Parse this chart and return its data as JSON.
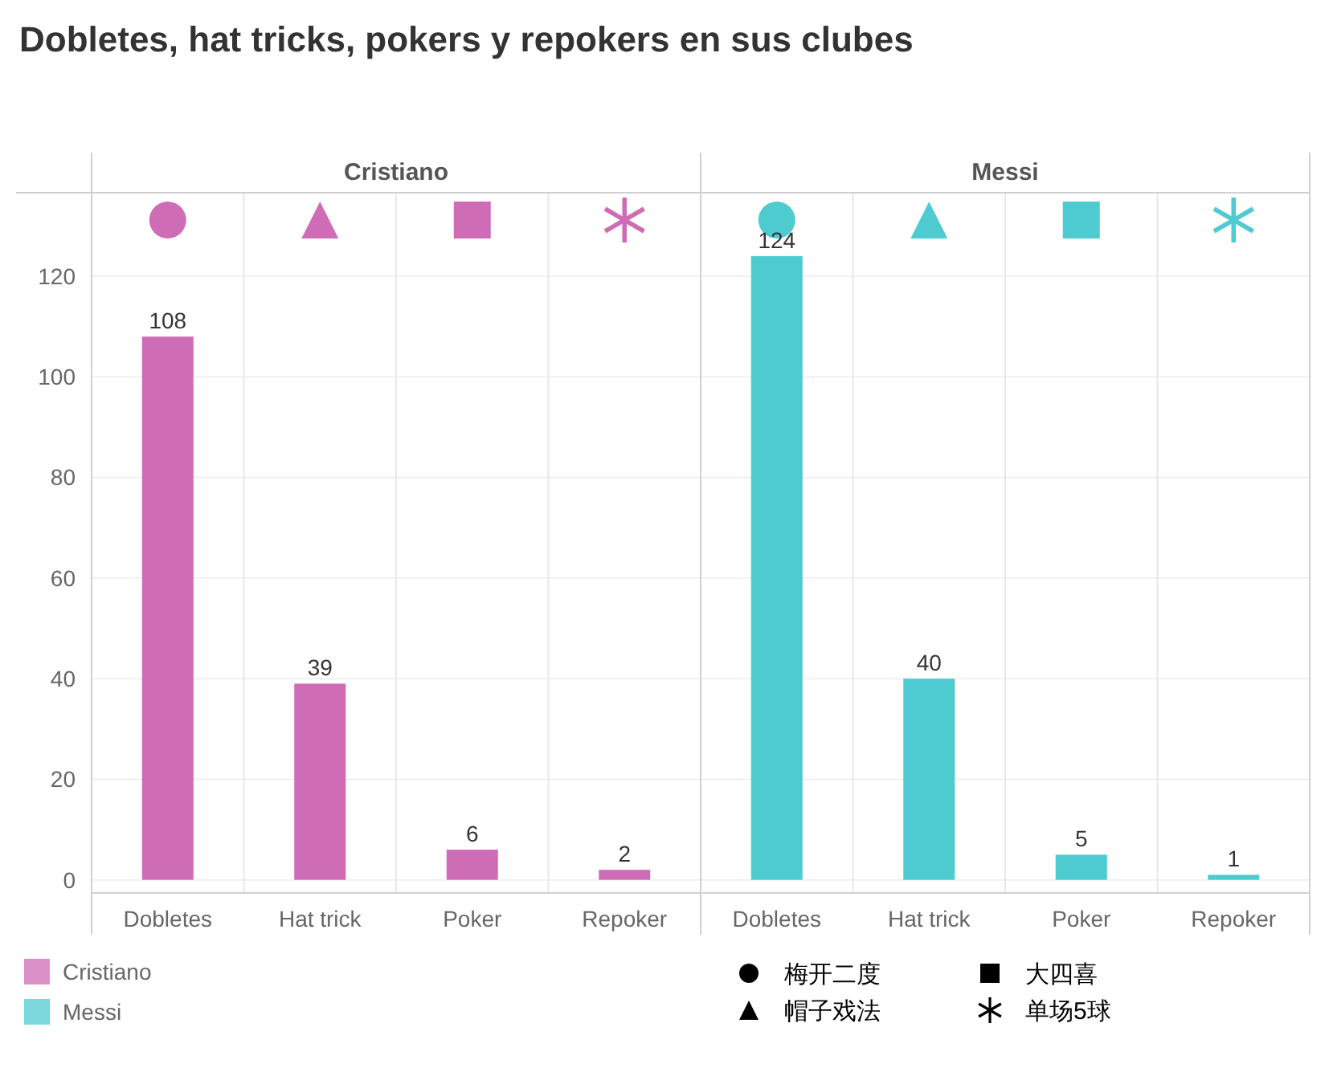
{
  "chart_data": [
    {
      "type": "bar",
      "title": "Dobletes, hat tricks, pokers y repokers en sus clubes",
      "subtitle": "Cristiano",
      "categories": [
        "Dobletes",
        "Hat trick",
        "Poker",
        "Repoker"
      ],
      "series": [
        {
          "name": "Cristiano",
          "color": "#cf6cb6",
          "values": [
            108,
            39,
            6,
            2
          ]
        }
      ],
      "ylim": [
        -2.6,
        136.6
      ],
      "yticks": [
        0,
        20,
        40,
        60,
        80,
        100,
        120
      ],
      "grid": true,
      "data_labels": true,
      "legend": "bottom left",
      "annotations": [
        "梅开二度",
        "帽子戏法",
        "大四喜",
        "单场5球"
      ]
    },
    {
      "type": "bar",
      "subtitle": "Messi",
      "categories": [
        "Dobletes",
        "Hat trick",
        "Poker",
        "Repoker"
      ],
      "series": [
        {
          "name": "Messi",
          "color": "#4ecbd1",
          "values": [
            124,
            40,
            5,
            1
          ]
        }
      ],
      "ylim": [
        -2.6,
        136.6
      ],
      "yticks": [
        0,
        20,
        40,
        60,
        80,
        100,
        120
      ],
      "grid": true,
      "data_labels": true,
      "legend": "bottom left",
      "tick_labels": "x"
    }
  ]
}
